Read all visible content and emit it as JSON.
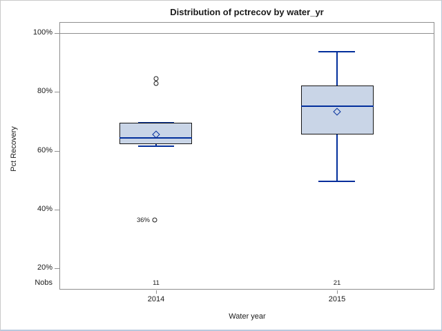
{
  "title": "Distribution of pctrecov by water_yr",
  "y_axis": {
    "label": "Pct Recovery",
    "ticks": [
      "100%",
      "80%",
      "60%",
      "40%",
      "20%"
    ],
    "nobs_label": "Nobs"
  },
  "x_axis": {
    "label": "Water year",
    "categories": [
      "2014",
      "2015"
    ]
  },
  "nobs": [
    "11",
    "21"
  ],
  "outlier_label": "36%",
  "colors": {
    "box_fill": "#c9d5e7",
    "box_border": "#141414",
    "line_blue": "#002d9b",
    "frame_gray": "#8e8e8e",
    "outlier_black": "#1a1a1a"
  },
  "chart_data": {
    "type": "box",
    "title": "Distribution of pctrecov by water_yr",
    "xlabel": "Water year",
    "ylabel": "Pct Recovery",
    "y_tick_values_pct": [
      100,
      80,
      60,
      40,
      20
    ],
    "ylim_pct": [
      13,
      104
    ],
    "reference_line_pct": 100,
    "grid": false,
    "categories": [
      "2014",
      "2015"
    ],
    "series": [
      {
        "category": "2014",
        "n": 11,
        "whisker_low": 61.5,
        "q1": 62,
        "median": 64,
        "q3": 69.5,
        "whisker_high": 69.5,
        "mean": 65.5,
        "outliers": [
          84.5,
          83,
          36
        ],
        "labeled_outlier": {
          "value": 36,
          "text": "36%"
        }
      },
      {
        "category": "2015",
        "n": 21,
        "whisker_low": 49.5,
        "q1": 65.5,
        "median": 75,
        "q3": 82,
        "whisker_high": 93.5,
        "mean": 73,
        "outliers": []
      }
    ]
  }
}
